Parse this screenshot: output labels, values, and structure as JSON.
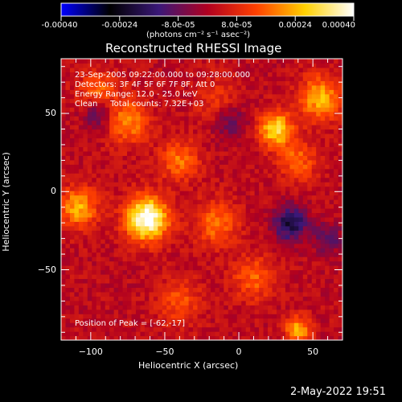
{
  "chart_data": {
    "type": "heatmap",
    "title": "Reconstructed RHESSI Image",
    "xlabel": "Heliocentric X (arcsec)",
    "ylabel": "Heliocentric Y (arcsec)",
    "xlim": [
      -120,
      70
    ],
    "ylim": [
      -95,
      85
    ],
    "xticks": [
      -100,
      -50,
      0,
      50
    ],
    "yticks": [
      -50,
      0,
      50
    ],
    "colorbar": {
      "label": "(photons cm⁻² s⁻¹ asec⁻²)",
      "range": [
        -0.0004,
        0.0004
      ],
      "ticks": [
        -0.0004,
        -0.00024,
        -8e-05,
        8e-05,
        0.00024,
        0.0004
      ],
      "tick_labels": [
        "-0.00040",
        "-0.00024",
        "-8.0e-05",
        "8.0e-05",
        "0.00024",
        "0.00040"
      ],
      "colormap": [
        "#0000ff",
        "#000000",
        "#3a1878",
        "#b00020",
        "#ff4000",
        "#ffd000",
        "#ffffff"
      ]
    },
    "annotations": [
      "23-Sep-2005 09:22:00.000 to 09:28:00.000",
      "Detectors: 3F 4F 5F 6F 7F 8F, Att 0",
      "Energy Range: 12.0 - 25.0 keV",
      "Clean     Total counts: 7.32E+03",
      "Position of Peak = [-62,-17]"
    ],
    "sources": [
      {
        "x": -62,
        "y": -17,
        "peak": 0.0004,
        "sigma": 10
      },
      {
        "x": -108,
        "y": -10,
        "peak": 0.00022,
        "sigma": 9
      },
      {
        "x": -75,
        "y": 45,
        "peak": 0.00018,
        "sigma": 10
      },
      {
        "x": -40,
        "y": 20,
        "peak": 0.00016,
        "sigma": 9
      },
      {
        "x": 25,
        "y": 40,
        "peak": 0.00028,
        "sigma": 8
      },
      {
        "x": 55,
        "y": 60,
        "peak": 0.00022,
        "sigma": 10
      },
      {
        "x": -15,
        "y": -20,
        "peak": 0.00016,
        "sigma": 10
      },
      {
        "x": 10,
        "y": -55,
        "peak": 0.00014,
        "sigma": 10
      },
      {
        "x": -40,
        "y": -70,
        "peak": 0.00012,
        "sigma": 10
      },
      {
        "x": 40,
        "y": -88,
        "peak": 0.00022,
        "sigma": 6
      },
      {
        "x": -95,
        "y": 65,
        "peak": 0.00014,
        "sigma": 9
      },
      {
        "x": 40,
        "y": 20,
        "peak": 0.00014,
        "sigma": 9
      },
      {
        "x": -15,
        "y": 60,
        "peak": 8e-05,
        "sigma": 10
      }
    ],
    "negative_sources": [
      {
        "x": 35,
        "y": -20,
        "peak": -0.00022,
        "sigma": 8
      },
      {
        "x": -95,
        "y": 50,
        "peak": -0.00014,
        "sigma": 7
      },
      {
        "x": 60,
        "y": -30,
        "peak": -0.00012,
        "sigma": 7
      },
      {
        "x": -5,
        "y": 45,
        "peak": -0.0001,
        "sigma": 8
      }
    ]
  },
  "footer": {
    "timestamp": "2-May-2022 19:51"
  }
}
